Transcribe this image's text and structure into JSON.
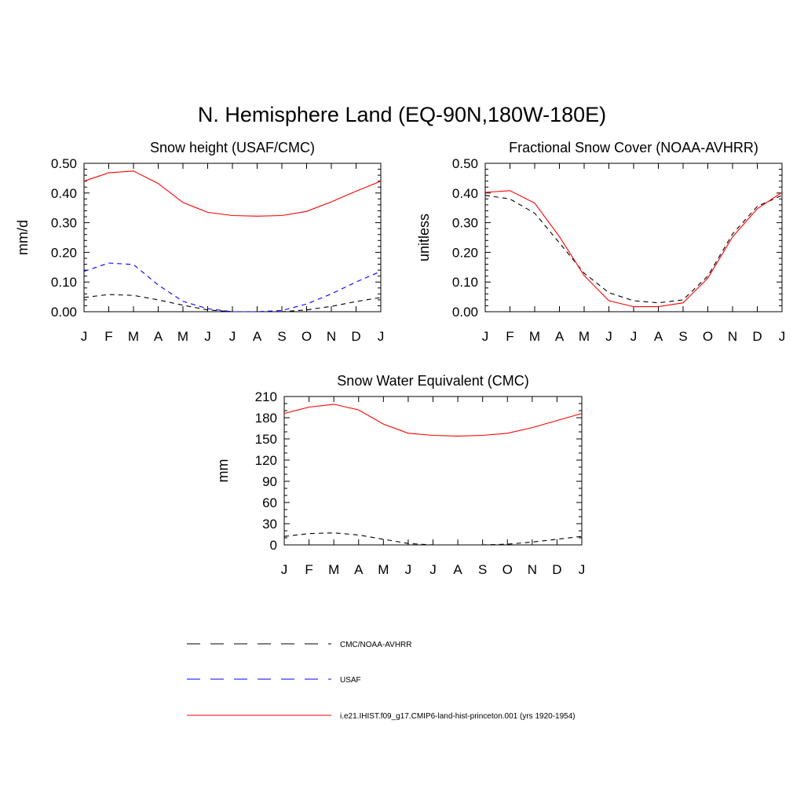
{
  "page": {
    "title": "N. Hemisphere Land (EQ-90N,180W-180E)"
  },
  "legend": [
    {
      "label": "CMC/NOAA-AVHRR",
      "color": "#000000",
      "style": "dashed"
    },
    {
      "label": "USAF",
      "color": "#0000ff",
      "style": "dashed"
    },
    {
      "label": "i.e21.IHIST.f09_g17.CMIP6-land-hist-princeton.001 (yrs 1920-1954)",
      "color": "#ff0000",
      "style": "solid"
    }
  ],
  "chart_data": [
    {
      "type": "line",
      "title": "Snow height (USAF/CMC)",
      "ylabel": "mm/d",
      "xlabel": "",
      "categories": [
        "J",
        "F",
        "M",
        "A",
        "M",
        "J",
        "J",
        "A",
        "S",
        "O",
        "N",
        "D",
        "J"
      ],
      "ylim": [
        0,
        0.5
      ],
      "yticks": [
        "0.00",
        "0.10",
        "0.20",
        "0.30",
        "0.40",
        "0.50"
      ],
      "series": [
        {
          "name": "i.e21.IHIST.f09_g17.CMIP6-land-hist-princeton.001 (yrs 1920-1954)",
          "color": "#ff0000",
          "style": "solid",
          "values": [
            0.44,
            0.468,
            0.474,
            0.432,
            0.368,
            0.335,
            0.324,
            0.322,
            0.324,
            0.338,
            0.37,
            0.406,
            0.44
          ]
        },
        {
          "name": "USAF",
          "color": "#0000ff",
          "style": "dashed",
          "values": [
            0.136,
            0.164,
            0.159,
            0.09,
            0.035,
            0.01,
            0.0,
            0.0,
            0.004,
            0.026,
            0.06,
            0.1,
            0.136
          ]
        },
        {
          "name": "CMC/NOAA-AVHRR",
          "color": "#000000",
          "style": "dashed",
          "values": [
            0.048,
            0.058,
            0.055,
            0.04,
            0.022,
            0.006,
            0.0,
            0.0,
            0.0,
            0.006,
            0.018,
            0.034,
            0.048
          ]
        }
      ]
    },
    {
      "type": "line",
      "title": "Fractional Snow Cover (NOAA-AVHRR)",
      "ylabel": "unitless",
      "xlabel": "",
      "categories": [
        "J",
        "F",
        "M",
        "A",
        "M",
        "J",
        "J",
        "A",
        "S",
        "O",
        "N",
        "D",
        "J"
      ],
      "ylim": [
        0,
        0.5
      ],
      "yticks": [
        "0.00",
        "0.10",
        "0.20",
        "0.30",
        "0.40",
        "0.50"
      ],
      "series": [
        {
          "name": "i.e21.IHIST.f09_g17.CMIP6-land-hist-princeton.001 (yrs 1920-1954)",
          "color": "#ff0000",
          "style": "solid",
          "values": [
            0.402,
            0.408,
            0.366,
            0.253,
            0.122,
            0.037,
            0.017,
            0.017,
            0.03,
            0.113,
            0.252,
            0.347,
            0.402
          ]
        },
        {
          "name": "CMC/NOAA-AVHRR",
          "color": "#000000",
          "style": "dashed",
          "values": [
            0.392,
            0.38,
            0.332,
            0.232,
            0.13,
            0.064,
            0.037,
            0.03,
            0.04,
            0.12,
            0.262,
            0.355,
            0.392
          ]
        }
      ]
    },
    {
      "type": "line",
      "title": "Snow Water Equivalent (CMC)",
      "ylabel": "mm",
      "xlabel": "",
      "categories": [
        "J",
        "F",
        "M",
        "A",
        "M",
        "J",
        "J",
        "A",
        "S",
        "O",
        "N",
        "D",
        "J"
      ],
      "ylim": [
        0,
        210
      ],
      "yticks": [
        "0",
        "30",
        "60",
        "90",
        "120",
        "150",
        "180",
        "210"
      ],
      "series": [
        {
          "name": "i.e21.IHIST.f09_g17.CMIP6-land-hist-princeton.001 (yrs 1920-1954)",
          "color": "#ff0000",
          "style": "solid",
          "values": [
            186,
            195,
            199,
            191,
            171,
            158,
            155,
            154,
            155,
            158,
            166,
            176,
            186
          ]
        },
        {
          "name": "CMC/NOAA-AVHRR",
          "color": "#000000",
          "style": "dashed",
          "values": [
            12,
            16,
            17,
            14,
            8,
            2,
            0,
            0,
            0,
            1,
            4,
            8,
            12
          ]
        }
      ]
    }
  ]
}
